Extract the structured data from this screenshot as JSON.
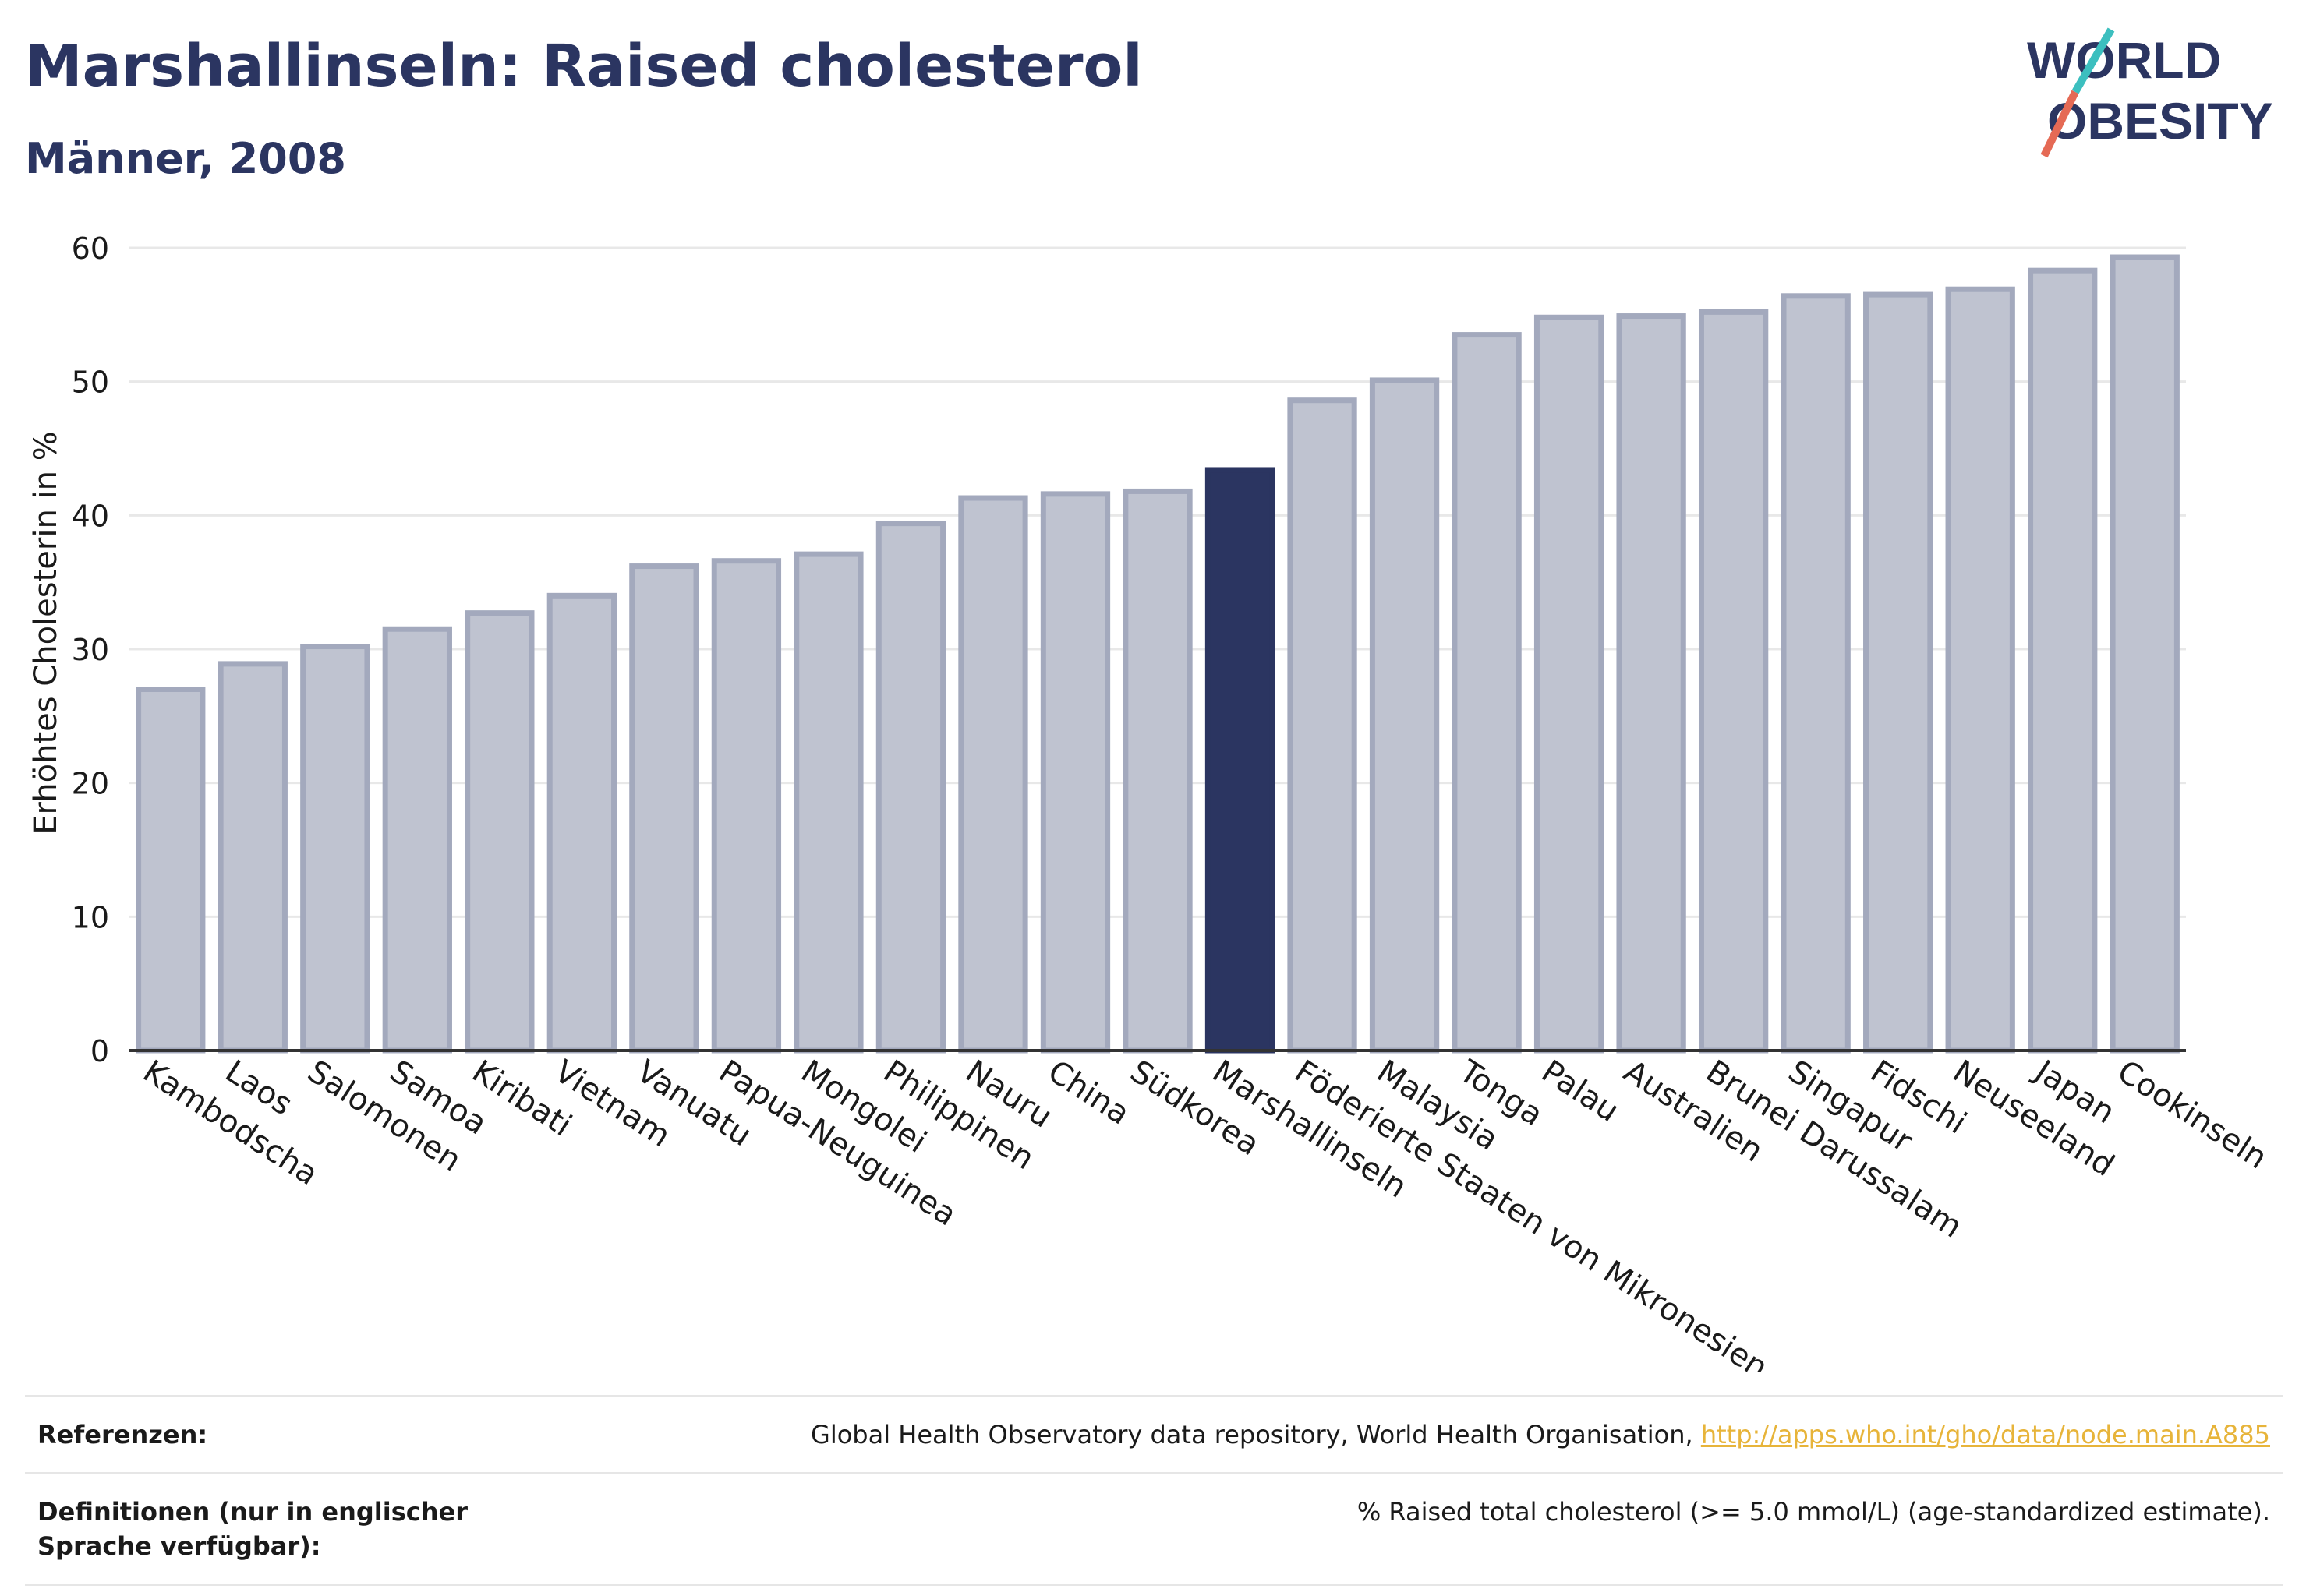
{
  "header": {
    "title": "Marshallinseln: Raised cholesterol",
    "subtitle": "Männer, 2008"
  },
  "logo": {
    "line1": "WORLD",
    "line2": "OBESITY",
    "accent_teal": "#3cbfbf",
    "accent_red": "#e56a55"
  },
  "colors": {
    "bar": "#bfc3d0",
    "bar_border": "#a3a9bd",
    "highlight": "#2b3561",
    "grid": "#e8e8e8",
    "axis": "#333333"
  },
  "chart_data": {
    "type": "bar",
    "ylabel": "Erhöhtes Cholesterin in %",
    "ylim": [
      0,
      60
    ],
    "yticks": [
      0,
      10,
      20,
      30,
      40,
      50,
      60
    ],
    "highlight": "Marshallinseln",
    "categories": [
      "Kambodscha",
      "Laos",
      "Salomonen",
      "Samoa",
      "Kiribati",
      "Vietnam",
      "Vanuatu",
      "Papua-Neuguinea",
      "Mongolei",
      "Philippinen",
      "Nauru",
      "China",
      "Südkorea",
      "Marshallinseln",
      "Föderierte Staaten von Mikronesien",
      "Malaysia",
      "Tonga",
      "Palau",
      "Australien",
      "Brunei Darussalam",
      "Singapur",
      "Fidschi",
      "Neuseeland",
      "Japan",
      "Cookinseln"
    ],
    "values": [
      27.0,
      28.9,
      30.2,
      31.5,
      32.7,
      34.0,
      36.2,
      36.6,
      37.1,
      39.4,
      41.3,
      41.6,
      41.8,
      43.4,
      48.6,
      50.1,
      53.5,
      54.8,
      54.9,
      55.2,
      56.4,
      56.5,
      56.9,
      58.3,
      59.3
    ]
  },
  "footer": {
    "ref_label": "Referenzen:",
    "ref_text": "Global Health Observatory data repository, World Health Organisation, ",
    "ref_link": "http://apps.who.int/gho/data/node.main.A885",
    "def_label": "Definitionen (nur in englischer Sprache verfügbar):",
    "def_text": "% Raised total cholesterol (>= 5.0 mmol/L) (age-standardized estimate)."
  }
}
